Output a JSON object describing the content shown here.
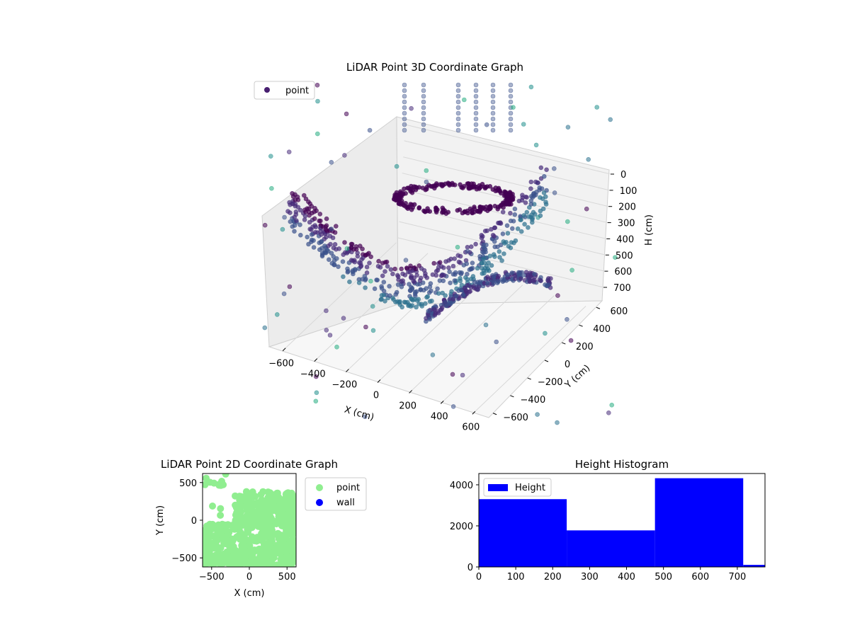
{
  "chart_data": [
    {
      "type": "scatter3d",
      "title": "LiDAR Point 3D Coordinate Graph",
      "xlabel": "X (cm)",
      "ylabel": "Y (cm)",
      "zlabel": "H (cm)",
      "xticks": [
        -600,
        -400,
        -200,
        0,
        200,
        400,
        600
      ],
      "yticks": [
        -600,
        -400,
        -200,
        0,
        200,
        400,
        600
      ],
      "zticks": [
        0,
        100,
        200,
        300,
        400,
        500,
        600,
        700
      ],
      "xlim": [
        -650,
        650
      ],
      "ylim": [
        -650,
        650
      ],
      "zlim": [
        780,
        0
      ],
      "legend": [
        "point"
      ],
      "legend_position": "top-left",
      "colormap": "viridis",
      "marker_color": "#481f70",
      "grid": true
    },
    {
      "type": "scatter",
      "title": "LiDAR Point 2D Coordinate Graph",
      "xlabel": "X (cm)",
      "ylabel": "Y (cm)",
      "xticks": [
        -500,
        0,
        500
      ],
      "yticks": [
        -500,
        0,
        500
      ],
      "xlim": [
        -620,
        620
      ],
      "ylim": [
        -620,
        620
      ],
      "series": [
        {
          "name": "point",
          "color": "#90ee90"
        },
        {
          "name": "wall",
          "color": "#0000ff"
        }
      ],
      "legend_position": "outside-right",
      "grid": false
    },
    {
      "type": "bar",
      "title": "Height Histogram",
      "xticks": [
        0,
        100,
        200,
        300,
        400,
        500,
        600,
        700
      ],
      "yticks": [
        0,
        2000,
        4000
      ],
      "xlim": [
        0,
        775
      ],
      "ylim": [
        0,
        4550
      ],
      "bins": [
        {
          "start": 0,
          "end": 238,
          "count": 3300
        },
        {
          "start": 238,
          "end": 477,
          "count": 1780
        },
        {
          "start": 477,
          "end": 716,
          "count": 4320
        },
        {
          "start": 716,
          "end": 955,
          "count": 100
        }
      ],
      "series": [
        {
          "name": "Height",
          "color": "#0000ff"
        }
      ],
      "legend_position": "top-left",
      "grid": false
    }
  ]
}
